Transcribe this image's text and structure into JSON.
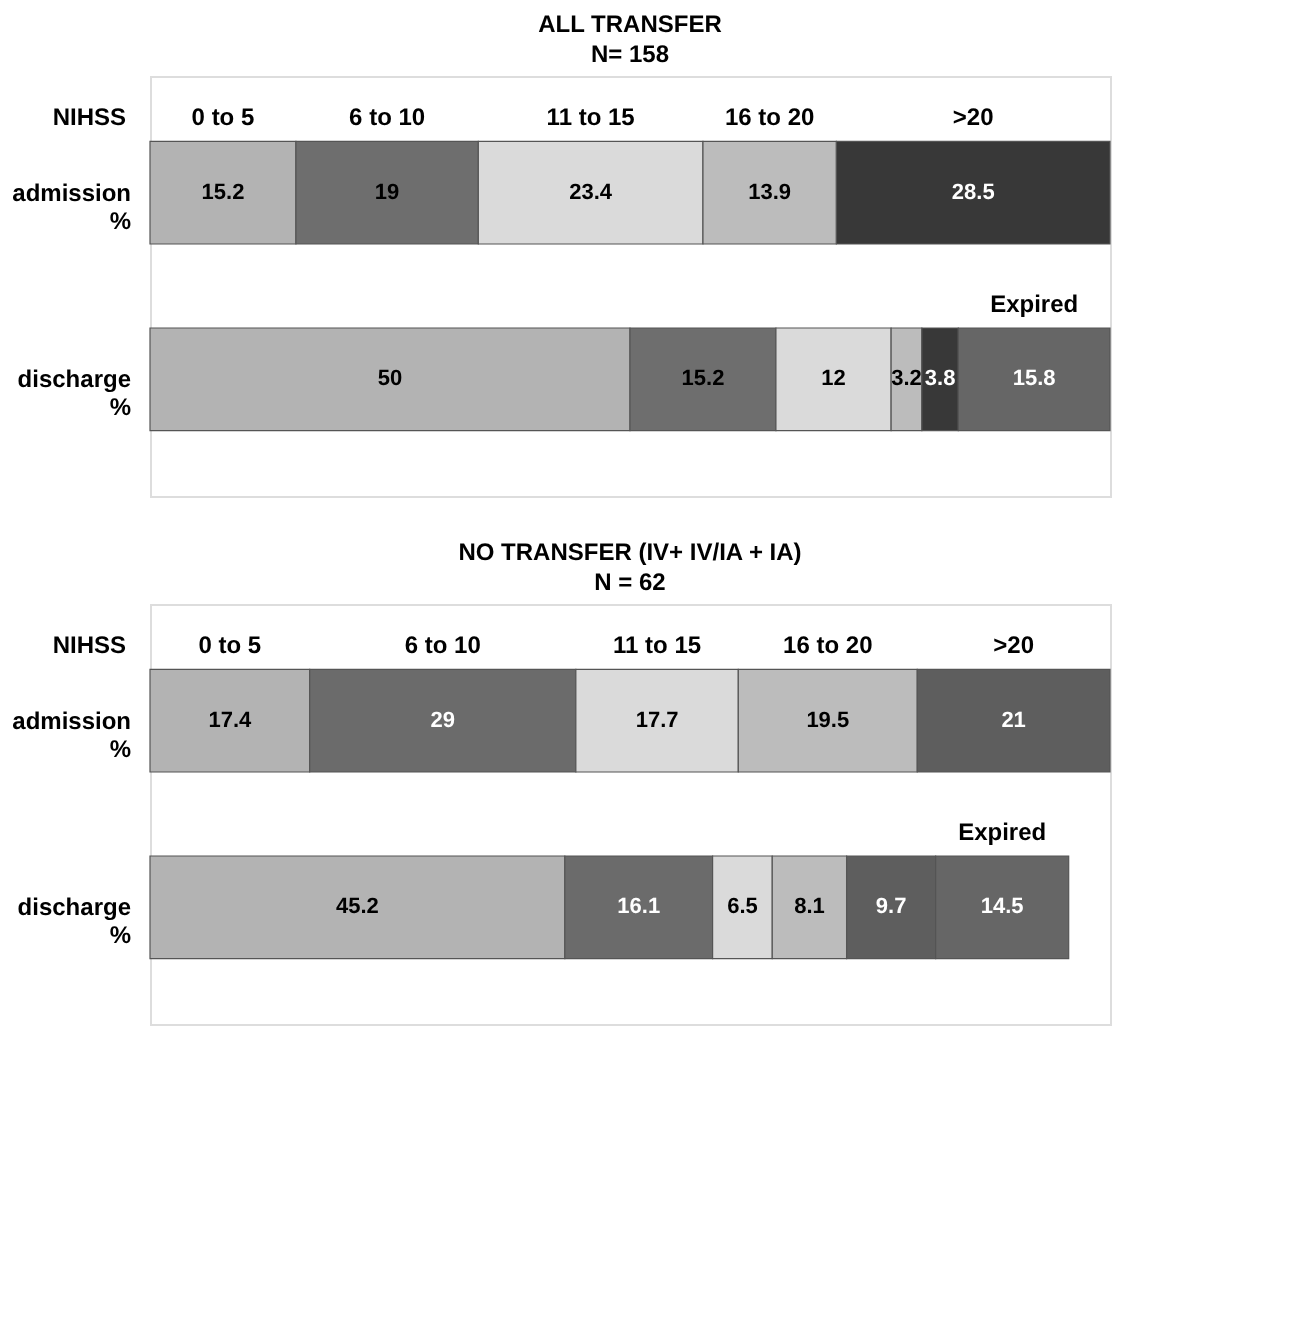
{
  "chart_data": [
    {
      "type": "bar",
      "orientation": "horizontal",
      "stacked": true,
      "title": "ALL TRANSFER",
      "subtitle": "N= 158",
      "legend_title": "NIHSS",
      "categories": [
        "admission %",
        "discharge %"
      ],
      "data_labels": true,
      "tick_labels": "y",
      "series": [
        {
          "name": "0 to 5",
          "color": "#b3b3b3",
          "values": [
            15.2,
            50
          ]
        },
        {
          "name": "6 to 10",
          "color": "#6e6e6e",
          "values": [
            19,
            15.2
          ]
        },
        {
          "name": "11 to 15",
          "color": "#dadada",
          "values": [
            23.4,
            12
          ]
        },
        {
          "name": "16 to 20",
          "color": "#bcbcbc",
          "values": [
            13.9,
            3.2
          ]
        },
        {
          "name": ">20",
          "color": "#383838",
          "values": [
            28.5,
            3.8
          ]
        },
        {
          "name": "Expired",
          "color": "#666666",
          "values": [
            null,
            15.8
          ]
        }
      ]
    },
    {
      "type": "bar",
      "orientation": "horizontal",
      "stacked": true,
      "title": "NO TRANSFER (IV+ IV/IA + IA)",
      "subtitle": "N = 62",
      "legend_title": "NIHSS",
      "categories": [
        "admission %",
        "discharge %"
      ],
      "data_labels": true,
      "tick_labels": "y",
      "series": [
        {
          "name": "0 to 5",
          "color": "#b3b3b3",
          "values": [
            17.4,
            45.2
          ]
        },
        {
          "name": "6 to 10",
          "color": "#6b6b6b",
          "values": [
            29,
            16.1
          ]
        },
        {
          "name": "11 to 15",
          "color": "#dadada",
          "values": [
            17.7,
            6.5
          ]
        },
        {
          "name": "16 to 20",
          "color": "#bcbcbc",
          "values": [
            19.5,
            8.1
          ]
        },
        {
          "name": ">20",
          "color": "#5e5e5e",
          "values": [
            21,
            9.7
          ]
        },
        {
          "name": "Expired",
          "color": "#666666",
          "values": [
            null,
            14.5
          ]
        }
      ]
    }
  ]
}
